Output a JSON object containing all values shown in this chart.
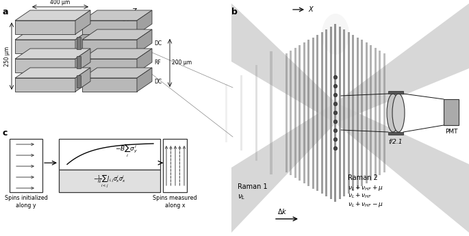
{
  "panel_a_label": "a",
  "panel_b_label": "b",
  "panel_c_label": "c",
  "bg_color": "#ffffff",
  "c_light": "#cccccc",
  "c_mid": "#aaaaaa",
  "c_dark": "#888888",
  "c_darker": "#666666",
  "c_beam": "#d8d8d8",
  "c_black": "#111111"
}
